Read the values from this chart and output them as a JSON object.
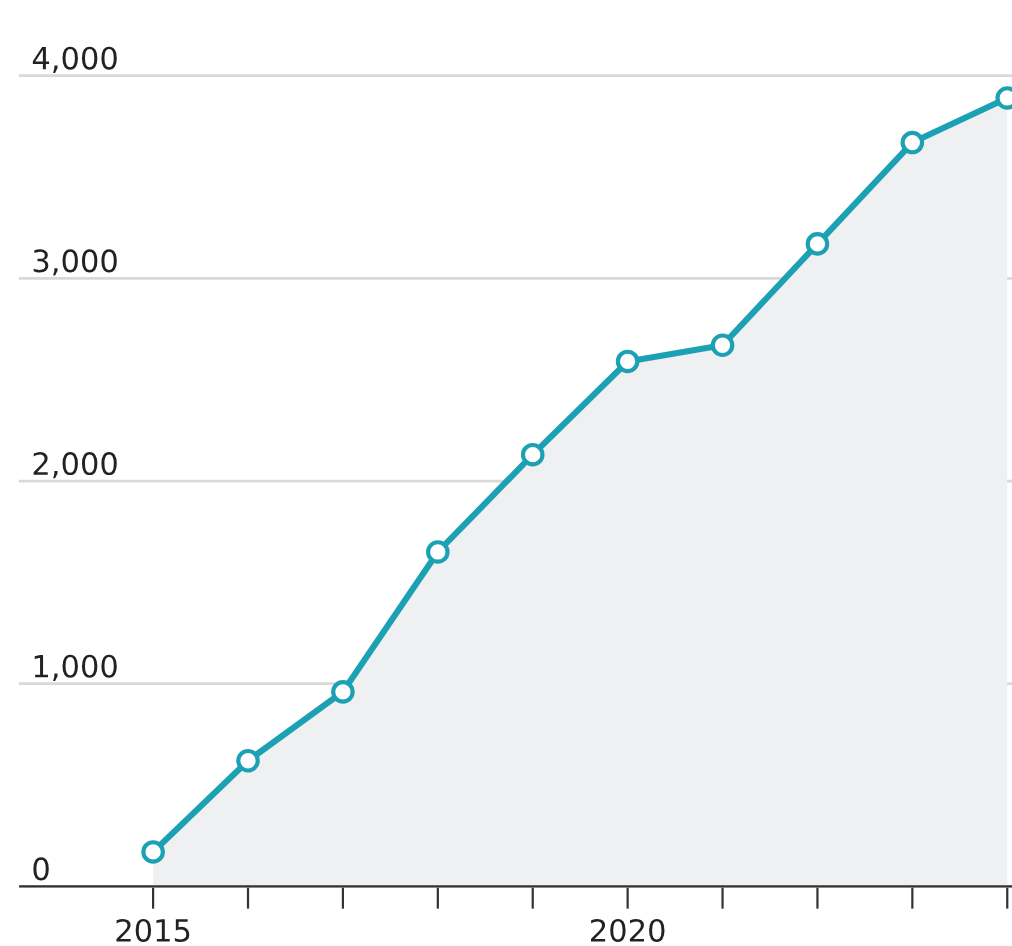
{
  "chart_data": {
    "type": "area",
    "x": [
      2015,
      2016,
      2017,
      2018,
      2019,
      2020,
      2021,
      2022,
      2023,
      2024
    ],
    "series": [
      {
        "color": "#1ca0b4",
        "values": [
          170,
          620,
          960,
          1650,
          2130,
          2590,
          2670,
          3170,
          3670,
          3890
        ]
      }
    ],
    "xlim": [
      2013.6,
      2024.05
    ],
    "ylim": [
      0,
      4000
    ],
    "xticks": [
      2015,
      {
        "value": 2016,
        "label": null
      },
      {
        "value": 2017,
        "label": null
      },
      {
        "value": 2018,
        "label": null
      },
      {
        "value": 2019,
        "label": null
      },
      2020,
      {
        "value": 2021,
        "label": null
      },
      {
        "value": 2022,
        "label": null
      },
      {
        "value": 2023,
        "label": null
      },
      {
        "value": 2024,
        "label": null
      }
    ],
    "yticks": [
      {
        "value": 0,
        "label": "0"
      },
      {
        "value": 1000,
        "label": "1,000"
      },
      {
        "value": 2000,
        "label": "2,000"
      },
      {
        "value": 3000,
        "label": "3,000"
      },
      {
        "value": 4000,
        "label": "4,000"
      }
    ],
    "grid": "y",
    "marker": "circle",
    "line_style": "solid",
    "legend": false
  }
}
